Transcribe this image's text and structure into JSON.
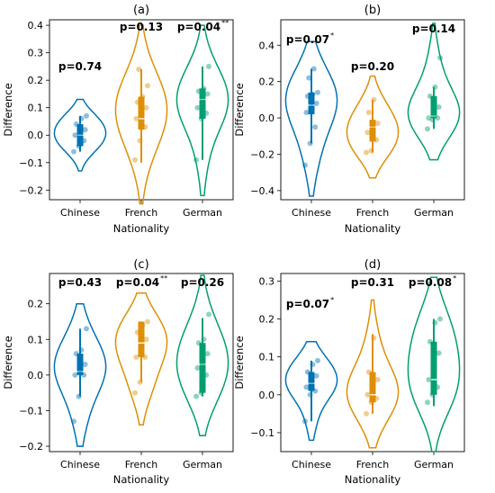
{
  "chart_data": [
    {
      "type": "violin",
      "title": "(a)",
      "ylabel": "Difference",
      "xlabel": "Nationality",
      "categories": [
        "Chinese",
        "French",
        "German"
      ],
      "ylim": [
        -0.235,
        0.42
      ],
      "yticks": [
        -0.2,
        -0.1,
        0.0,
        0.1,
        0.2,
        0.3,
        0.4
      ],
      "series": [
        {
          "category": "Chinese",
          "color": "#0072b2",
          "range": [
            -0.13,
            0.13
          ],
          "median": 0.0,
          "q1": -0.04,
          "q3": 0.04,
          "wlo": -0.06,
          "whi": 0.07,
          "points": [
            -0.06,
            -0.04,
            -0.02,
            0.0,
            0.0,
            0.02,
            0.04,
            0.06,
            0.07
          ],
          "annotation": "p=0.74",
          "stars": ""
        },
        {
          "category": "French",
          "color": "#de8f05",
          "range": [
            -0.25,
            0.4
          ],
          "median": 0.06,
          "q1": 0.02,
          "q3": 0.14,
          "wlo": -0.1,
          "whi": 0.24,
          "points": [
            -0.09,
            -0.02,
            0.03,
            0.06,
            0.08,
            0.1,
            0.12,
            0.14,
            0.18,
            0.24
          ],
          "annotation": "p=0.13",
          "stars": ""
        },
        {
          "category": "German",
          "color": "#029e73",
          "range": [
            -0.22,
            0.4
          ],
          "median": 0.13,
          "q1": 0.06,
          "q3": 0.17,
          "wlo": -0.09,
          "whi": 0.25,
          "points": [
            -0.09,
            0.06,
            0.08,
            0.1,
            0.13,
            0.15,
            0.16,
            0.17,
            0.25
          ],
          "annotation": "p=0.04",
          "stars": "**"
        }
      ]
    },
    {
      "type": "violin",
      "title": "(b)",
      "ylabel": "Difference",
      "xlabel": "Nationality",
      "categories": [
        "Chinese",
        "French",
        "German"
      ],
      "ylim": [
        -0.45,
        0.54
      ],
      "yticks": [
        -0.4,
        -0.2,
        0.0,
        0.2,
        0.4
      ],
      "series": [
        {
          "category": "Chinese",
          "color": "#0072b2",
          "range": [
            -0.43,
            0.42
          ],
          "median": 0.07,
          "q1": 0.02,
          "q3": 0.14,
          "wlo": -0.14,
          "whi": 0.27,
          "points": [
            -0.26,
            -0.14,
            -0.05,
            0.03,
            0.06,
            0.08,
            0.12,
            0.13,
            0.14,
            0.22,
            0.27
          ],
          "annotation": "p=0.07",
          "stars": "*"
        },
        {
          "category": "French",
          "color": "#de8f05",
          "range": [
            -0.33,
            0.23
          ],
          "median": -0.05,
          "q1": -0.13,
          "q3": -0.01,
          "wlo": -0.19,
          "whi": 0.1,
          "points": [
            -0.19,
            -0.18,
            -0.12,
            -0.08,
            -0.05,
            -0.03,
            0.03,
            0.1
          ],
          "annotation": "p=0.20",
          "stars": ""
        },
        {
          "category": "German",
          "color": "#029e73",
          "range": [
            -0.23,
            0.52
          ],
          "median": 0.01,
          "q1": 0.0,
          "q3": 0.12,
          "wlo": -0.06,
          "whi": 0.17,
          "points": [
            -0.06,
            -0.01,
            0.0,
            0.0,
            0.01,
            0.06,
            0.12,
            0.17,
            0.33
          ],
          "annotation": "p=0.14",
          "stars": ""
        }
      ]
    },
    {
      "type": "violin",
      "title": "(c)",
      "ylabel": "Difference",
      "xlabel": "Nationality",
      "categories": [
        "Chinese",
        "French",
        "German"
      ],
      "ylim": [
        -0.215,
        0.285
      ],
      "yticks": [
        -0.2,
        -0.1,
        0.0,
        0.1,
        0.2
      ],
      "series": [
        {
          "category": "Chinese",
          "color": "#0072b2",
          "range": [
            -0.2,
            0.2
          ],
          "median": 0.01,
          "q1": 0.0,
          "q3": 0.06,
          "wlo": -0.06,
          "whi": 0.13,
          "points": [
            -0.13,
            -0.06,
            0.0,
            0.0,
            0.01,
            0.03,
            0.06,
            0.07,
            0.13
          ],
          "annotation": "p=0.43",
          "stars": ""
        },
        {
          "category": "French",
          "color": "#de8f05",
          "range": [
            -0.14,
            0.23
          ],
          "median": 0.09,
          "q1": 0.05,
          "q3": 0.15,
          "wlo": -0.02,
          "whi": 0.15,
          "points": [
            -0.05,
            -0.02,
            0.05,
            0.05,
            0.08,
            0.1,
            0.12,
            0.14,
            0.15
          ],
          "annotation": "p=0.04",
          "stars": "**"
        },
        {
          "category": "German",
          "color": "#029e73",
          "range": [
            -0.17,
            0.28
          ],
          "median": 0.03,
          "q1": -0.05,
          "q3": 0.09,
          "wlo": -0.06,
          "whi": 0.16,
          "points": [
            -0.06,
            -0.05,
            0.0,
            0.02,
            0.03,
            0.06,
            0.09,
            0.1,
            0.17
          ],
          "annotation": "p=0.26",
          "stars": ""
        }
      ]
    },
    {
      "type": "violin",
      "title": "(d)",
      "ylabel": "Difference",
      "xlabel": "Nationality",
      "categories": [
        "Chinese",
        "French",
        "German"
      ],
      "ylim": [
        -0.15,
        0.32
      ],
      "yticks": [
        -0.1,
        0.0,
        0.1,
        0.2,
        0.3
      ],
      "series": [
        {
          "category": "Chinese",
          "color": "#0072b2",
          "range": [
            -0.12,
            0.14
          ],
          "median": 0.03,
          "q1": 0.01,
          "q3": 0.06,
          "wlo": -0.07,
          "whi": 0.09,
          "points": [
            -0.07,
            0.0,
            0.01,
            0.02,
            0.03,
            0.05,
            0.06,
            0.08,
            0.09
          ],
          "annotation": "p=0.07",
          "stars": "*"
        },
        {
          "category": "French",
          "color": "#de8f05",
          "range": [
            -0.14,
            0.25
          ],
          "median": 0.0,
          "q1": -0.02,
          "q3": 0.06,
          "wlo": -0.05,
          "whi": 0.16,
          "points": [
            -0.05,
            -0.02,
            -0.01,
            0.0,
            0.02,
            0.04,
            0.06,
            0.15
          ],
          "annotation": "p=0.31",
          "stars": ""
        },
        {
          "category": "German",
          "color": "#029e73",
          "range": [
            -0.15,
            0.31
          ],
          "median": 0.04,
          "q1": 0.0,
          "q3": 0.14,
          "wlo": -0.03,
          "whi": 0.2,
          "points": [
            -0.02,
            0.0,
            0.02,
            0.04,
            0.08,
            0.11,
            0.14,
            0.19,
            0.2
          ],
          "annotation": "p=0.08",
          "stars": "*"
        }
      ]
    }
  ]
}
